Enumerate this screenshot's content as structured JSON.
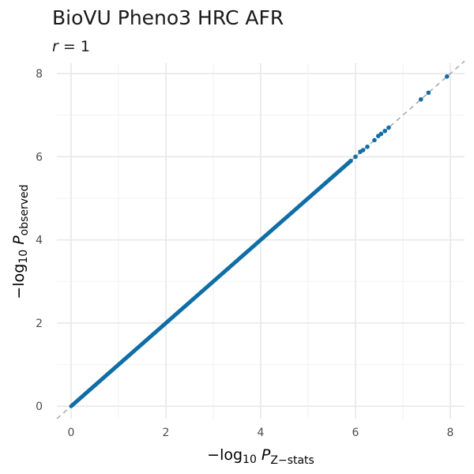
{
  "chart_data": {
    "type": "scatter",
    "title": "BioVU Pheno3 HRC AFR",
    "subtitle": {
      "var": "r",
      "eq": " = ",
      "value": "1"
    },
    "xlabel": {
      "prefix": "−log",
      "base": "10",
      "var": " P",
      "subscript": "Z−stats"
    },
    "ylabel": {
      "prefix": "−log",
      "base": "10",
      "var": " P",
      "subscript": "observed"
    },
    "xlim": [
      -0.3,
      8.3
    ],
    "ylim": [
      -0.3,
      8.25
    ],
    "x_ticks": [
      0,
      2,
      4,
      6,
      8
    ],
    "y_ticks": [
      0,
      2,
      4,
      6,
      8
    ],
    "x_tick_labels": [
      "0",
      "2",
      "4",
      "6",
      "8"
    ],
    "y_tick_labels": [
      "0",
      "2",
      "4",
      "6",
      "8"
    ],
    "grid": true,
    "reference_line": {
      "slope": 1,
      "intercept": 0,
      "style": "dashed",
      "color": "#aaaaaa"
    },
    "point_color": "#0f6ea6",
    "dense_band": {
      "from": 0,
      "to": 5.9
    },
    "sparse_points": [
      [
        5.9,
        5.9
      ],
      [
        6.0,
        6.0
      ],
      [
        6.1,
        6.12
      ],
      [
        6.16,
        6.16
      ],
      [
        6.25,
        6.24
      ],
      [
        6.4,
        6.4
      ],
      [
        6.48,
        6.5
      ],
      [
        6.54,
        6.55
      ],
      [
        6.62,
        6.62
      ],
      [
        6.7,
        6.7
      ],
      [
        7.38,
        7.38
      ],
      [
        7.54,
        7.54
      ],
      [
        7.93,
        7.93
      ]
    ]
  }
}
